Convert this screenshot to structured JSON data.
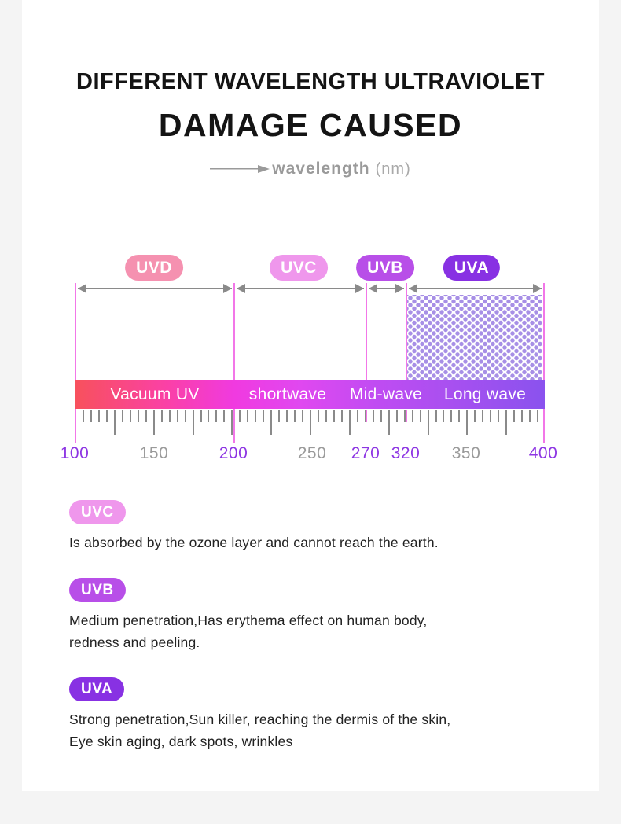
{
  "header": {
    "title_line1": "DIFFERENT WAVELENGTH ULTRAVIOLET",
    "title_line2": "DAMAGE CAUSED",
    "axis_caption": "wavelength",
    "axis_unit": "(nm)"
  },
  "colors": {
    "uvd_badge": "#f591b0",
    "uvc_badge": "#ef97ec",
    "uvb_badge": "#b84fe8",
    "uva_badge": "#8831e3",
    "boundary_line": "#f277e8",
    "axis_number_purple": "#8d35e3",
    "axis_number_gray": "#9a9a9a",
    "bar_gradient_start": "#f8515c",
    "bar_gradient_mid": "#f03ae0",
    "bar_gradient_end": "#8a52ee"
  },
  "diagram": {
    "bands": [
      {
        "label": "UVD",
        "range_label": "Vacuum UV"
      },
      {
        "label": "UVC",
        "range_label": "shortwave"
      },
      {
        "label": "UVB",
        "range_label": "Mid-wave"
      },
      {
        "label": "UVA",
        "range_label": "Long wave"
      }
    ],
    "axis_ticks": [
      {
        "value": "100",
        "style": "purple"
      },
      {
        "value": "150",
        "style": "gray"
      },
      {
        "value": "200",
        "style": "purple"
      },
      {
        "value": "250",
        "style": "gray"
      },
      {
        "value": "270",
        "style": "purple"
      },
      {
        "value": "320",
        "style": "purple"
      },
      {
        "value": "350",
        "style": "gray"
      },
      {
        "value": "400",
        "style": "purple"
      }
    ]
  },
  "sections": [
    {
      "badge": "UVC",
      "lines": [
        "Is absorbed by the ozone layer and cannot reach the earth."
      ]
    },
    {
      "badge": "UVB",
      "lines": [
        "Medium penetration,Has erythema effect on human body,",
        "redness and peeling."
      ]
    },
    {
      "badge": "UVA",
      "lines": [
        "Strong penetration,Sun killer, reaching the dermis of the skin,",
        "Eye skin aging, dark spots, wrinkles"
      ]
    }
  ]
}
